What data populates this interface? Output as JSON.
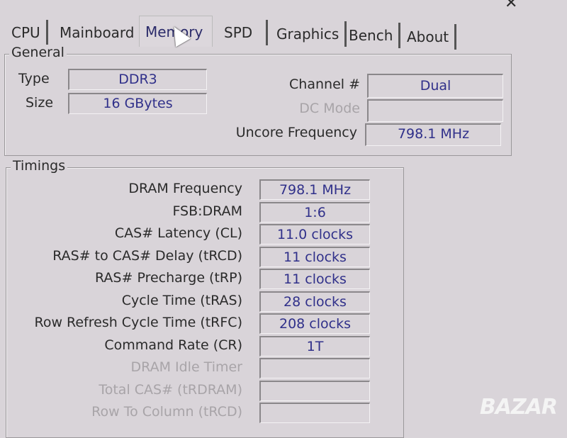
{
  "tabs": [
    "CPU",
    "Mainboard",
    "Memory",
    "SPD",
    "Graphics",
    "Bench",
    "About"
  ],
  "active_tab": "Memory",
  "general": {
    "title": "General",
    "type_label": "Type",
    "type_value": "DDR3",
    "size_label": "Size",
    "size_value": "16 GBytes",
    "channel_label": "Channel #",
    "channel_value": "Dual",
    "dc_mode_label": "DC Mode",
    "dc_mode_value": "",
    "uncore_label": "Uncore Frequency",
    "uncore_value": "798.1 MHz"
  },
  "timings": {
    "title": "Timings",
    "rows": [
      {
        "label": "DRAM Frequency",
        "value": "798.1 MHz",
        "disabled": false
      },
      {
        "label": "FSB:DRAM",
        "value": "1:6",
        "disabled": false
      },
      {
        "label": "CAS# Latency (CL)",
        "value": "11.0 clocks",
        "disabled": false
      },
      {
        "label": "RAS# to CAS# Delay (tRCD)",
        "value": "11 clocks",
        "disabled": false
      },
      {
        "label": "RAS# Precharge (tRP)",
        "value": "11 clocks",
        "disabled": false
      },
      {
        "label": "Cycle Time (tRAS)",
        "value": "28 clocks",
        "disabled": false
      },
      {
        "label": "Row Refresh Cycle Time (tRFC)",
        "value": "208 clocks",
        "disabled": false
      },
      {
        "label": "Command Rate (CR)",
        "value": "1T",
        "disabled": false
      },
      {
        "label": "DRAM Idle Timer",
        "value": "",
        "disabled": true
      },
      {
        "label": "Total CAS# (tRDRAM)",
        "value": "",
        "disabled": true
      },
      {
        "label": "Row To Column (tRCD)",
        "value": "",
        "disabled": true
      }
    ]
  },
  "watermark": "BAZAR",
  "colors": {
    "value_text": "#30308a",
    "background": "#d9d4d9"
  }
}
